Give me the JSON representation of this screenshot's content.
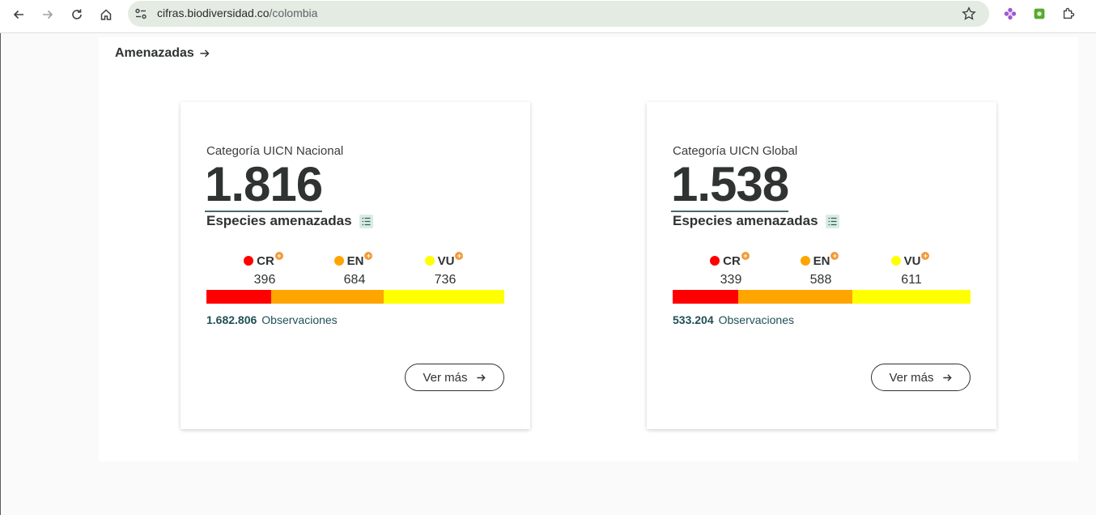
{
  "browser": {
    "url_host": "cifras.biodiversidad.co",
    "url_path": "/colombia"
  },
  "section": {
    "link_label": "Amenazadas"
  },
  "cards": [
    {
      "label": "Categoría UICN Nacional",
      "total": "1.816",
      "subtitle": "Especies amenazadas",
      "categories": [
        {
          "code": "CR",
          "value": "396",
          "color": "#ff0000"
        },
        {
          "code": "EN",
          "value": "684",
          "color": "#ffa500"
        },
        {
          "code": "VU",
          "value": "736",
          "color": "#ffff00"
        }
      ],
      "observations_value": "1.682.806",
      "observations_label": "Observaciones",
      "button_label": "Ver más"
    },
    {
      "label": "Categoría UICN Global",
      "total": "1.538",
      "subtitle": "Especies amenazadas",
      "categories": [
        {
          "code": "CR",
          "value": "339",
          "color": "#ff0000"
        },
        {
          "code": "EN",
          "value": "588",
          "color": "#ffa500"
        },
        {
          "code": "VU",
          "value": "611",
          "color": "#ffff00"
        }
      ],
      "observations_value": "533.204",
      "observations_label": "Observaciones",
      "button_label": "Ver más"
    }
  ]
}
